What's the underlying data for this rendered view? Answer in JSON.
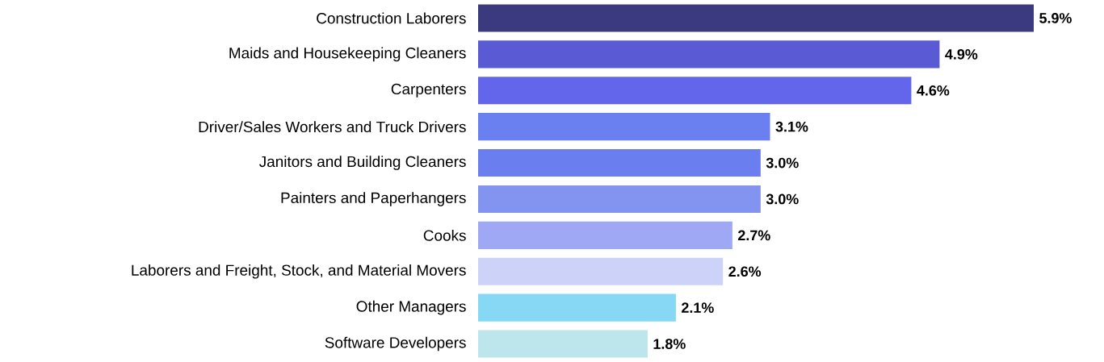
{
  "chart_data": {
    "type": "bar",
    "orientation": "horizontal",
    "categories": [
      "Construction Laborers",
      "Maids and Housekeeping Cleaners",
      "Carpenters",
      "Driver/Sales Workers and Truck Drivers",
      "Janitors and Building Cleaners",
      "Painters and Paperhangers",
      "Cooks",
      "Laborers and Freight, Stock, and Material Movers",
      "Other Managers",
      "Software Developers"
    ],
    "values": [
      5.9,
      4.9,
      4.6,
      3.1,
      3.0,
      3.0,
      2.7,
      2.6,
      2.1,
      1.8
    ],
    "value_labels": [
      "5.9%",
      "4.9%",
      "4.6%",
      "3.1%",
      "3.0%",
      "3.0%",
      "2.7%",
      "2.6%",
      "2.1%",
      "1.8%"
    ],
    "colors": [
      "#3b3a7e",
      "#5a5bd4",
      "#6366ea",
      "#6b80f0",
      "#6b7ef0",
      "#8294f0",
      "#9ea8f4",
      "#cdd3f8",
      "#87d8f4",
      "#bce5ec"
    ]
  }
}
